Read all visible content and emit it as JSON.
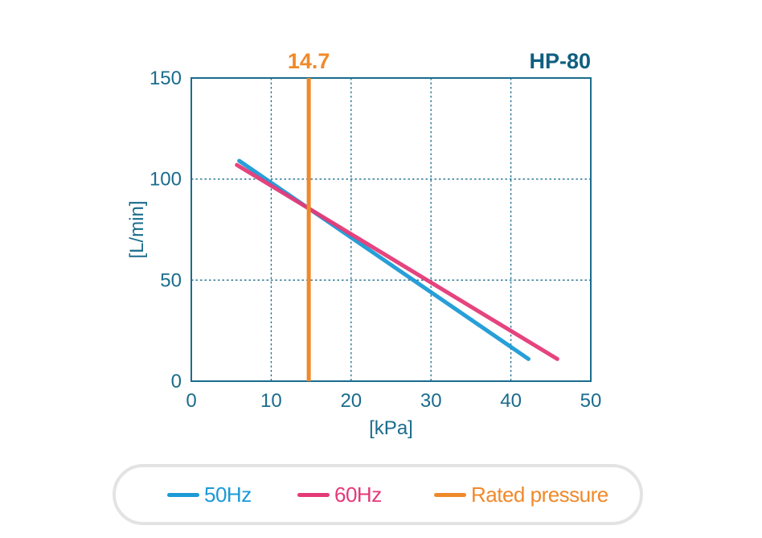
{
  "chart_data": {
    "type": "line",
    "title": "HP-80",
    "xlabel": "[kPa]",
    "ylabel": "[L/min]",
    "xlim": [
      0,
      50
    ],
    "ylim": [
      0,
      150
    ],
    "xticks": [
      "0",
      "10",
      "20",
      "30",
      "40",
      "50"
    ],
    "yticks": [
      "0",
      "50",
      "100",
      "150"
    ],
    "grid": true,
    "series": [
      {
        "name": "50Hz",
        "color": "#1b9ad6",
        "x": [
          6,
          42.2
        ],
        "y": [
          109,
          11
        ]
      },
      {
        "name": "60Hz",
        "color": "#e43a77",
        "x": [
          5.7,
          45.8
        ],
        "y": [
          107,
          11
        ]
      }
    ],
    "reference_line": {
      "name": "Rated pressure",
      "x": 14.7,
      "label": "14.7",
      "color": "#f0892a"
    },
    "legend": {
      "placement": "bottom",
      "entries": [
        {
          "label": "50Hz",
          "color": "#1b9ad6"
        },
        {
          "label": "60Hz",
          "color": "#e43a77"
        },
        {
          "label": "Rated pressure",
          "color": "#f0892a"
        }
      ]
    }
  },
  "colors": {
    "axis": "#1a6c8c",
    "grid": "#1a6c8c",
    "legend_border": "#e3e3e3"
  }
}
